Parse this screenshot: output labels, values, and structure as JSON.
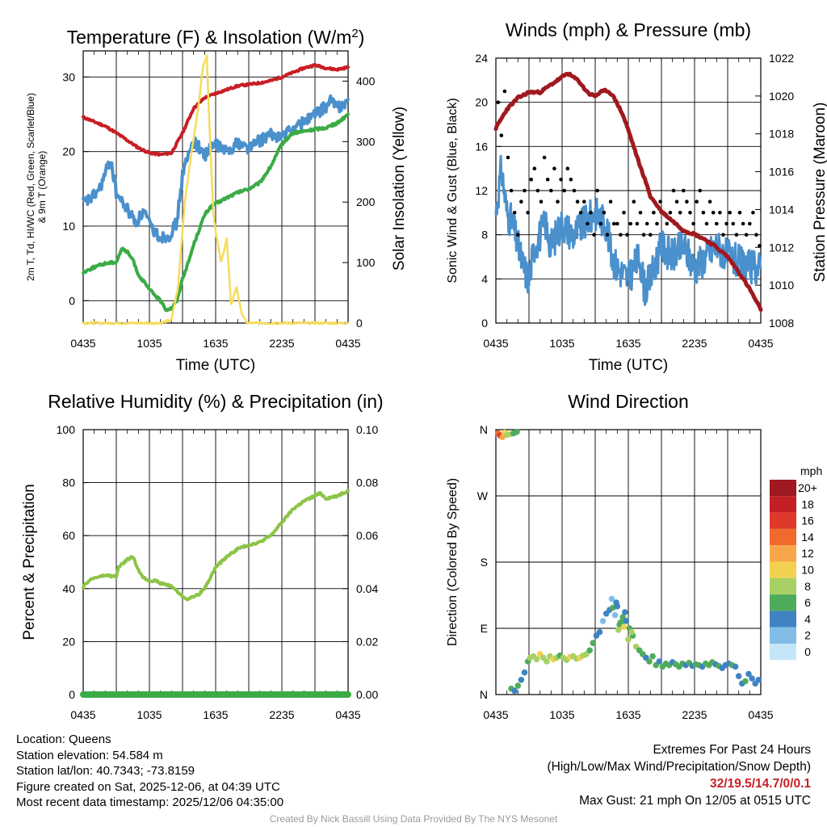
{
  "chart_data": [
    {
      "id": "temp",
      "type": "line",
      "title": "Temperature (F) & Insolation (W/m²)",
      "title_parts": [
        "Temperature (F) & Insolation (W/m",
        "2",
        ")"
      ],
      "xlabel": "Time (UTC)",
      "ylabel_lines": [
        "2m T, Td, HI/WC (Red, Green, Scarlet/Blue)",
        "& 9m T (Orange)"
      ],
      "y2label": "Solar Insolation (Yellow)",
      "x_ticks": [
        "0435",
        "1035",
        "1635",
        "2235",
        "0435"
      ],
      "xlim": [
        0,
        24
      ],
      "ylim": [
        -3,
        33.5
      ],
      "y_ticks": [
        0,
        10,
        20,
        30
      ],
      "y2lim": [
        0,
        450
      ],
      "y2_ticks": [
        0,
        100,
        200,
        300,
        400
      ],
      "series": [
        {
          "name": "2m T",
          "color": "#c81e24",
          "axis": "left",
          "x": [
            0,
            1,
            2,
            3,
            4,
            5,
            6,
            7,
            8,
            9,
            10,
            11,
            12,
            13,
            14,
            15,
            16,
            17,
            18,
            19,
            20,
            21,
            22,
            23,
            24
          ],
          "values": [
            24.6,
            24,
            23.4,
            22.5,
            21.5,
            20.5,
            19.8,
            19.6,
            19.8,
            22.5,
            25.8,
            27.2,
            27.8,
            28.3,
            28.8,
            29,
            29.2,
            29.5,
            30,
            30.6,
            31.2,
            31.6,
            31.2,
            31,
            31.3
          ]
        },
        {
          "name": "HI/WC",
          "color": "#4a90cc",
          "axis": "left",
          "x": [
            0,
            0.8,
            1.5,
            2.5,
            3,
            3.5,
            4,
            4.8,
            5.5,
            6,
            6.5,
            7,
            7.8,
            8.5,
            9,
            10,
            11,
            12,
            13,
            14,
            15,
            16,
            17,
            18,
            19,
            20,
            21,
            22,
            22.5,
            23,
            24
          ],
          "values": [
            13,
            13.8,
            15,
            19,
            14.5,
            13.2,
            12.2,
            10.5,
            12,
            10.2,
            9.2,
            8.5,
            8.8,
            10.5,
            17,
            21.5,
            19.5,
            21,
            20,
            21.2,
            20.5,
            21.5,
            22.2,
            22,
            23,
            24,
            25,
            26,
            27,
            25.8,
            27
          ]
        },
        {
          "name": "2m Td",
          "color": "#3aab45",
          "axis": "left",
          "x": [
            0,
            1,
            2,
            3,
            3.5,
            4,
            4.5,
            5,
            6,
            7,
            7.5,
            8,
            8.5,
            9,
            9.5,
            10,
            11,
            11.5,
            12,
            13,
            14,
            15,
            16,
            17,
            18,
            19,
            20,
            21,
            22,
            23,
            24
          ],
          "values": [
            3.8,
            4.5,
            5,
            5.2,
            7,
            6.5,
            5.5,
            3.5,
            1.5,
            0,
            -1.2,
            -1,
            0,
            3,
            5,
            7.5,
            11.5,
            12.5,
            13,
            13.8,
            14.5,
            15,
            15.8,
            18,
            21,
            22.5,
            22.7,
            23,
            23.2,
            23.8,
            25
          ]
        },
        {
          "name": "Solar Insolation",
          "color": "#f6dc5a",
          "axis": "right",
          "x": [
            0,
            7,
            8,
            8.6,
            9.2,
            9.8,
            10.3,
            10.9,
            11.2,
            11.5,
            11.8,
            12.1,
            12.5,
            13,
            13.4,
            13.9,
            14.3,
            14.8,
            15.3,
            16,
            24
          ],
          "values": [
            0,
            0,
            5,
            60,
            200,
            280,
            340,
            430,
            440,
            300,
            180,
            140,
            100,
            140,
            30,
            60,
            20,
            0,
            0,
            0,
            0
          ]
        }
      ]
    },
    {
      "id": "wind",
      "type": "line",
      "title": "Winds (mph) & Pressure (mb)",
      "xlabel": "Time (UTC)",
      "ylabel": "Sonic Wind & Gust (Blue, Black)",
      "y2label": "Station Pressure (Maroon)",
      "x_ticks": [
        "0435",
        "1035",
        "1635",
        "2235",
        "0435"
      ],
      "xlim": [
        0,
        24
      ],
      "ylim": [
        0,
        24
      ],
      "y_ticks": [
        0,
        4,
        8,
        12,
        16,
        20,
        24
      ],
      "y2lim": [
        1008,
        1022
      ],
      "y2_ticks": [
        1008,
        1010,
        1012,
        1014,
        1016,
        1018,
        1020,
        1022
      ],
      "series": [
        {
          "name": "Sonic Wind",
          "color": "#4a90cc",
          "axis": "left",
          "x": [
            0,
            0.5,
            1,
            1.5,
            2,
            2.5,
            3,
            3.5,
            4,
            4.5,
            5,
            6,
            7,
            8,
            9,
            10,
            10.5,
            11,
            12,
            13,
            13.5,
            14,
            15,
            16,
            17,
            18,
            19,
            20,
            21,
            22,
            23,
            24
          ],
          "values": [
            10,
            14,
            10,
            9,
            7,
            5,
            4,
            7,
            8,
            9,
            7,
            9,
            8,
            9,
            10,
            9,
            6,
            5,
            4,
            6,
            3,
            4,
            7,
            6,
            7,
            5,
            6,
            7,
            6,
            5.5,
            5,
            5
          ]
        },
        {
          "name": "Gust",
          "color": "#000000",
          "axis": "left",
          "style": "dots",
          "x": [
            0.2,
            0.5,
            0.8,
            1.1,
            1.4,
            1.7,
            2,
            2.3,
            2.6,
            2.9,
            3.2,
            3.5,
            3.8,
            4.1,
            4.4,
            4.7,
            5,
            5.3,
            5.6,
            5.9,
            6.2,
            6.5,
            6.8,
            7.1,
            7.4,
            7.7,
            8,
            8.3,
            8.6,
            8.9,
            9.2,
            9.5,
            9.8,
            10.1,
            10.4,
            10.7,
            11,
            11.3,
            11.6,
            11.9,
            12.2,
            12.5,
            12.8,
            13.1,
            13.4,
            13.7,
            14,
            14.3,
            14.6,
            14.9,
            15.2,
            15.5,
            15.8,
            16.1,
            16.4,
            16.7,
            17,
            17.3,
            17.6,
            17.9,
            18.2,
            18.5,
            18.8,
            19.1,
            19.4,
            19.7,
            20,
            20.3,
            20.6,
            20.9,
            21.2,
            21.5,
            21.8,
            22.1,
            22.4,
            22.7,
            23,
            23.3,
            23.6,
            23.9
          ],
          "values": [
            20,
            17,
            21,
            15,
            12,
            10,
            8,
            11,
            12,
            10,
            13,
            14,
            12,
            11,
            15,
            13,
            12,
            14,
            11,
            13,
            12,
            14,
            13,
            12,
            11,
            10,
            11,
            9,
            10,
            8,
            12,
            9,
            10,
            8,
            11,
            9,
            9,
            8,
            10,
            8,
            9,
            11,
            9,
            10,
            8,
            9,
            8,
            10,
            9,
            11,
            10,
            9,
            10,
            12,
            11,
            10,
            12,
            11,
            10,
            9,
            11,
            12,
            10,
            9,
            11,
            10,
            9,
            10,
            8,
            9,
            10,
            9,
            8,
            10,
            9,
            8,
            9,
            10,
            8,
            7
          ]
        },
        {
          "name": "Station Pressure",
          "color": "#a0191f",
          "axis": "right",
          "x": [
            0,
            0.5,
            1,
            2,
            3,
            4,
            5,
            6,
            6.5,
            7,
            7.5,
            8,
            8.5,
            9,
            9.5,
            10,
            10.5,
            11,
            11.5,
            12,
            12.5,
            13,
            13.5,
            14,
            15,
            16,
            17,
            18,
            19,
            20,
            21,
            22,
            23,
            24
          ],
          "values": [
            1018.3,
            1018.8,
            1019.3,
            1019.9,
            1020.2,
            1020.2,
            1020.6,
            1021,
            1021.2,
            1021,
            1020.8,
            1020.4,
            1020.1,
            1020,
            1020.2,
            1020.3,
            1020.1,
            1019.6,
            1019,
            1018.2,
            1017.3,
            1016.4,
            1015.6,
            1014.7,
            1013.9,
            1013.4,
            1012.9,
            1012.7,
            1012.4,
            1012,
            1011.5,
            1010.7,
            1009.8,
            1008.7
          ]
        }
      ]
    },
    {
      "id": "rh",
      "type": "line",
      "title": "Relative Humidity (%) & Precipitation (in)",
      "xlabel": "",
      "ylabel": "Percent & Precipitation",
      "x_ticks": [
        "0435",
        "1035",
        "1635",
        "2235",
        "0435"
      ],
      "xlim": [
        0,
        24
      ],
      "ylim": [
        0,
        100
      ],
      "y_ticks": [
        0,
        20,
        40,
        60,
        80,
        100
      ],
      "y2lim": [
        0,
        0.1
      ],
      "y2_ticks": [
        "0.00",
        "0.02",
        "0.04",
        "0.06",
        "0.08",
        "0.10"
      ],
      "series": [
        {
          "name": "Relative Humidity",
          "color": "#8cc447",
          "axis": "left",
          "x": [
            0,
            0.5,
            1,
            2,
            3,
            3.2,
            4,
            4.5,
            5,
            5.5,
            6,
            6.5,
            7,
            8,
            9,
            9.5,
            10,
            10.5,
            11,
            12,
            13,
            14,
            15,
            16,
            17,
            18,
            19,
            20,
            21,
            21.5,
            22,
            23,
            24
          ],
          "values": [
            40.5,
            43,
            44,
            45,
            44.5,
            48,
            51,
            52,
            47,
            44,
            43,
            43,
            42,
            41,
            37,
            36,
            37,
            38,
            40,
            48,
            52,
            55,
            56.5,
            57.5,
            60,
            65,
            70,
            73,
            75,
            76,
            74,
            75,
            77
          ]
        },
        {
          "name": "Precipitation",
          "color": "#3aab45",
          "axis": "right",
          "x": [
            0,
            24
          ],
          "values": [
            0,
            0
          ]
        }
      ]
    },
    {
      "id": "wdir",
      "type": "scatter",
      "title": "Wind Direction",
      "ylabel": "Direction (Colored By Speed)",
      "x_ticks": [
        "0435",
        "1035",
        "1635",
        "2235",
        "0435"
      ],
      "xlim": [
        0,
        24
      ],
      "ylim": [
        0,
        360
      ],
      "y_ticks": [
        {
          "v": 0,
          "l": "N"
        },
        {
          "v": 90,
          "l": "E"
        },
        {
          "v": 180,
          "l": "S"
        },
        {
          "v": 270,
          "l": "W"
        },
        {
          "v": 360,
          "l": "N"
        }
      ],
      "legend_title": "mph",
      "legend_labels": [
        "20+",
        "18",
        "16",
        "14",
        "12",
        "10",
        "8",
        "6",
        "4",
        "2",
        "0"
      ],
      "legend_colors": [
        "#9e1a1e",
        "#c21f26",
        "#e0382b",
        "#f06a2c",
        "#f8a64a",
        "#f2d152",
        "#a8d064",
        "#4fab5c",
        "#3f83c2",
        "#82bde7",
        "#c4e6f8"
      ],
      "points": {
        "x": [
          0.2,
          0.4,
          0.6,
          0.8,
          1.0,
          1.3,
          1.6,
          1.9,
          1.4,
          1.7,
          2.0,
          2.3,
          2.6,
          2.9,
          3.1,
          3.4,
          3.7,
          4.0,
          4.3,
          4.6,
          4.9,
          5.2,
          5.5,
          5.8,
          6.1,
          6.4,
          6.7,
          7.0,
          7.3,
          7.6,
          7.9,
          8.2,
          8.5,
          8.8,
          9.1,
          9.4,
          9.7,
          10.0,
          10.3,
          10.6,
          10.9,
          11.2,
          11.5,
          11.8,
          12.1,
          12.4,
          12.7,
          13.0,
          13.3,
          13.6,
          13.9,
          14.2,
          14.5,
          14.8,
          15.1,
          15.4,
          15.7,
          16.0,
          16.3,
          16.6,
          16.9,
          17.2,
          17.5,
          17.8,
          18.1,
          18.4,
          18.7,
          19.0,
          19.3,
          19.6,
          19.9,
          20.2,
          20.5,
          20.8,
          21.1,
          21.4,
          21.7,
          22.0,
          22.3,
          22.6,
          22.9,
          23.2,
          23.5,
          23.8,
          10.5,
          10.8,
          11.1,
          11.4,
          11.7,
          12.0,
          12.3,
          11.0,
          11.3,
          11.6
        ],
        "y": [
          355,
          352,
          350,
          356,
          353,
          354,
          355,
          357,
          8,
          5,
          12,
          20,
          30,
          45,
          50,
          52,
          48,
          55,
          50,
          45,
          52,
          48,
          50,
          53,
          50,
          47,
          51,
          52,
          49,
          50,
          53,
          55,
          60,
          70,
          80,
          85,
          100,
          110,
          115,
          118,
          125,
          95,
          105,
          100,
          90,
          80,
          65,
          60,
          55,
          50,
          45,
          52,
          40,
          45,
          38,
          42,
          40,
          44,
          41,
          38,
          42,
          40,
          43,
          39,
          41,
          40,
          38,
          42,
          40,
          44,
          41,
          39,
          36,
          40,
          42,
          40,
          38,
          25,
          15,
          18,
          28,
          22,
          15,
          20,
          130,
          108,
          88,
          96,
          112,
          75,
          85,
          120,
          98,
          92
        ],
        "speeds": [
          14,
          16,
          12,
          11,
          9,
          8,
          7,
          6,
          6,
          5,
          6,
          4,
          5,
          7,
          8,
          9,
          8,
          10,
          9,
          8,
          9,
          10,
          9,
          7,
          8,
          9,
          10,
          9,
          8,
          10,
          9,
          8,
          7,
          6,
          5,
          4,
          3,
          4,
          5,
          6,
          5,
          7,
          6,
          5,
          6,
          7,
          8,
          7,
          6,
          5,
          6,
          7,
          6,
          5,
          6,
          7,
          6,
          5,
          6,
          7,
          6,
          5,
          6,
          5,
          7,
          6,
          5,
          6,
          7,
          6,
          5,
          6,
          5,
          4,
          5,
          6,
          5,
          4,
          5,
          6,
          4,
          5,
          4,
          5,
          2,
          3,
          9,
          7,
          5,
          9,
          8,
          4,
          6,
          10
        ]
      }
    }
  ],
  "footer": {
    "location": "Location: Queens",
    "elevation": "Station elevation: 54.584 m",
    "latlon": "Station lat/lon: 40.7343; -73.8159",
    "created": "Figure created on Sat, 2025-12-06, at 04:39 UTC",
    "recent": "Most recent data timestamp: 2025/12/06 04:35:00",
    "extremes_title": "Extremes For Past 24 Hours",
    "extremes_fields": "(High/Low/Max Wind/Precipitation/Snow Depth)",
    "extremes_values": "32/19.5/14.7/0/0.1",
    "max_gust": "Max Gust: 21 mph On 12/05 at 0515 UTC",
    "credit": "Created By Nick Bassill Using Data Provided By The NYS Mesonet"
  }
}
